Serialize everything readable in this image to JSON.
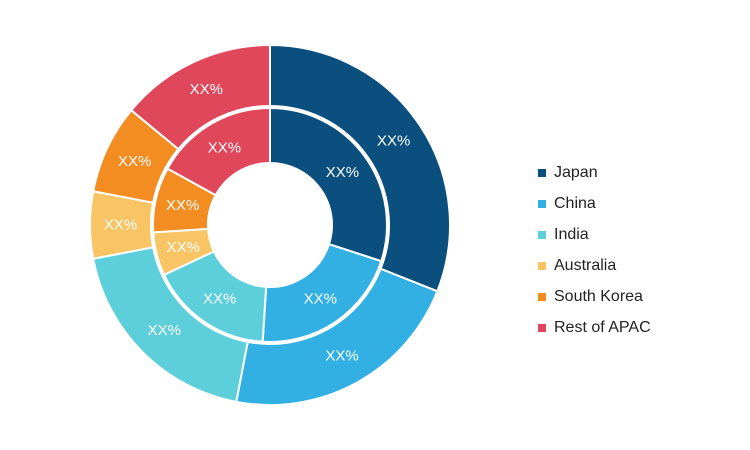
{
  "chart_data": {
    "type": "pie",
    "subtype": "nested-donut",
    "categories": [
      "Japan",
      "China",
      "India",
      "Australia",
      "South Korea",
      "Rest of APAC"
    ],
    "colors": [
      "#0a4f7e",
      "#33b0e3",
      "#5ccfda",
      "#f9c564",
      "#f38d21",
      "#e0475a"
    ],
    "series": [
      {
        "values": [
          30,
          21,
          17,
          6,
          9,
          17
        ],
        "labels": [
          "XX%",
          "XX%",
          "XX%",
          "XX%",
          "XX%",
          "XX%"
        ]
      },
      {
        "values": [
          31,
          22,
          19,
          6,
          8,
          14
        ],
        "labels": [
          "XX%",
          "XX%",
          "XX%",
          "XX%",
          "XX%",
          "XX%"
        ]
      }
    ],
    "legend_position": "right"
  },
  "legend": [
    {
      "label": "Japan",
      "color": "#0a4f7e"
    },
    {
      "label": "China",
      "color": "#33b0e3"
    },
    {
      "label": "India",
      "color": "#5ccfda"
    },
    {
      "label": "Australia",
      "color": "#f9c564"
    },
    {
      "label": "South Korea",
      "color": "#f38d21"
    },
    {
      "label": "Rest of APAC",
      "color": "#e0475a"
    }
  ]
}
